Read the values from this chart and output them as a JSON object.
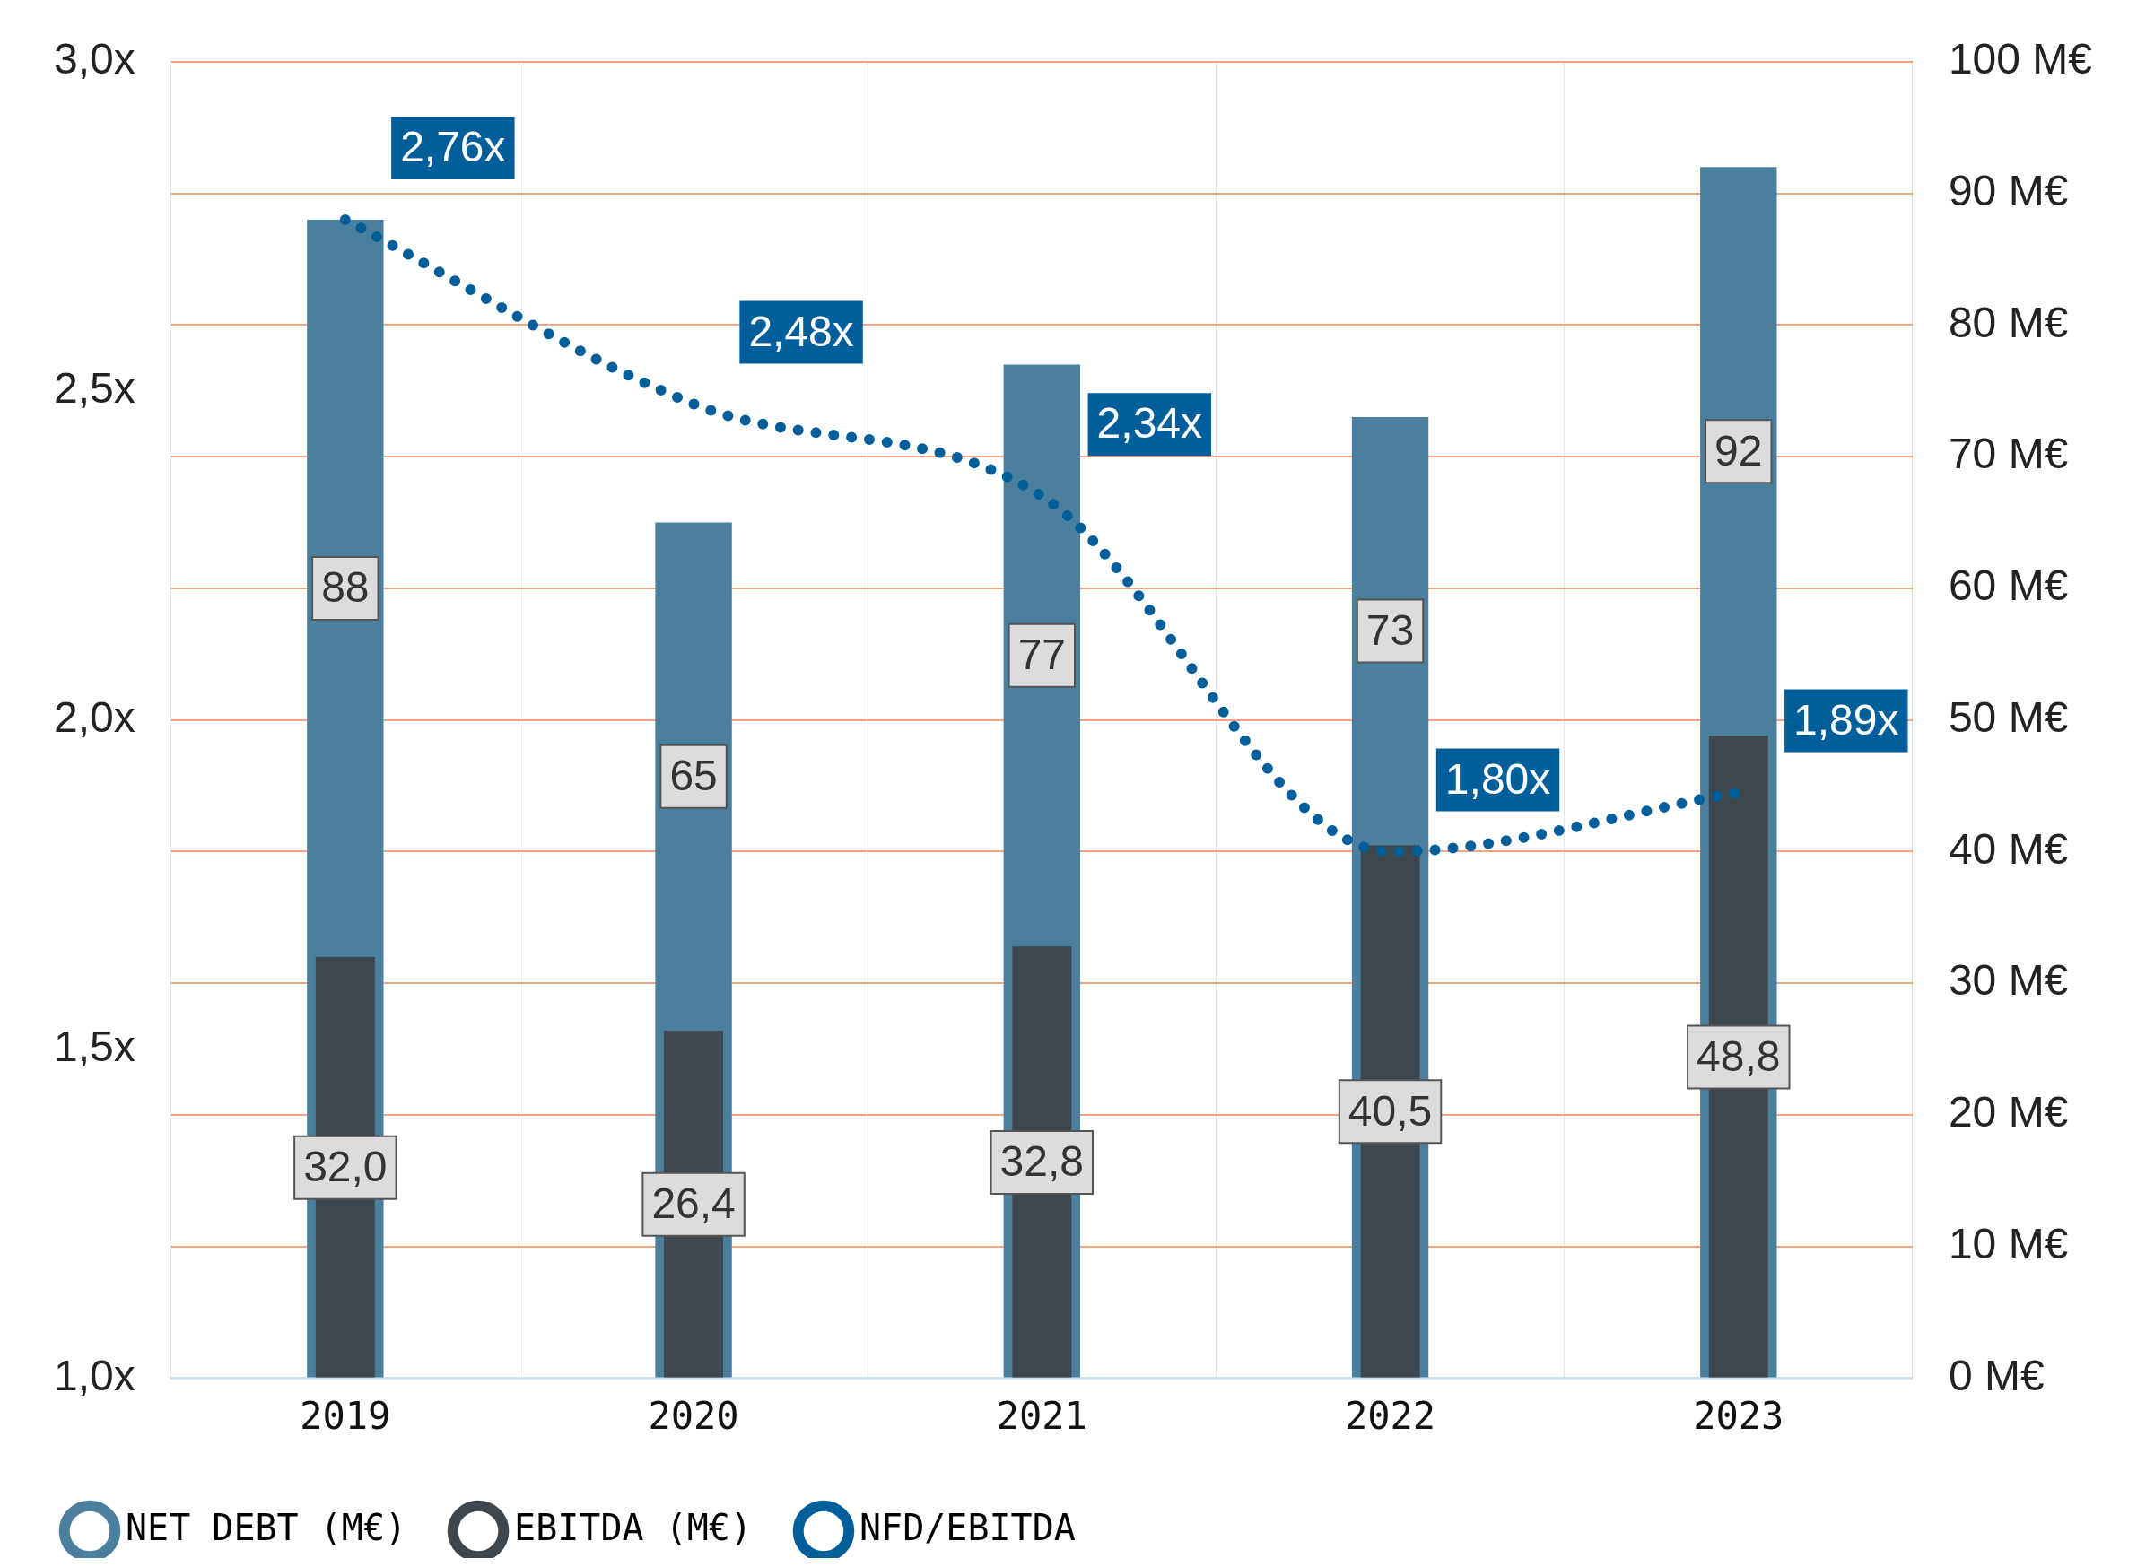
{
  "chart_data": {
    "type": "bar",
    "categories": [
      "2019",
      "2020",
      "2021",
      "2022",
      "2023"
    ],
    "series": [
      {
        "name": "NET DEBT (M€)",
        "type": "bar",
        "axis": "y2",
        "color": "#4b7f9e",
        "values": [
          88,
          65,
          77,
          73,
          92
        ],
        "value_labels": [
          "88",
          "65",
          "77",
          "73",
          "92"
        ]
      },
      {
        "name": "EBITDA (M€)",
        "type": "bar",
        "axis": "y2",
        "color": "#3f474e",
        "values": [
          32.0,
          26.4,
          32.8,
          40.5,
          48.8
        ],
        "value_labels": [
          "32,0",
          "26,4",
          "32,8",
          "40,5",
          "48,8"
        ]
      },
      {
        "name": "NFD/EBITDA",
        "type": "line",
        "axis": "y",
        "color": "#005f9a",
        "line_style": "dotted",
        "values": [
          2.76,
          2.48,
          2.34,
          1.8,
          1.89
        ],
        "value_labels": [
          "2,76x",
          "2,48x",
          "2,34x",
          "1,80x",
          "1,89x"
        ]
      }
    ],
    "ylim": [
      1,
      3
    ],
    "yticks": [
      {
        "value": 1,
        "label": "1,0x"
      },
      {
        "value": 1.5,
        "label": "1,5x"
      },
      {
        "value": 2,
        "label": "2,0x"
      },
      {
        "value": 2.5,
        "label": "2,5x"
      },
      {
        "value": 3,
        "label": "3,0x"
      }
    ],
    "y2lim": [
      0,
      100
    ],
    "y2ticks": [
      {
        "value": 0,
        "label": "0 M€"
      },
      {
        "value": 10,
        "label": "10 M€"
      },
      {
        "value": 20,
        "label": "20 M€"
      },
      {
        "value": 30,
        "label": "30 M€"
      },
      {
        "value": 40,
        "label": "40 M€"
      },
      {
        "value": 50,
        "label": "50 M€"
      },
      {
        "value": 60,
        "label": "60 M€"
      },
      {
        "value": 70,
        "label": "70 M€"
      },
      {
        "value": 80,
        "label": "80 M€"
      },
      {
        "value": 90,
        "label": "90 M€"
      },
      {
        "value": 100,
        "label": "100 M€"
      }
    ],
    "grid": true,
    "legend": "bottom"
  }
}
